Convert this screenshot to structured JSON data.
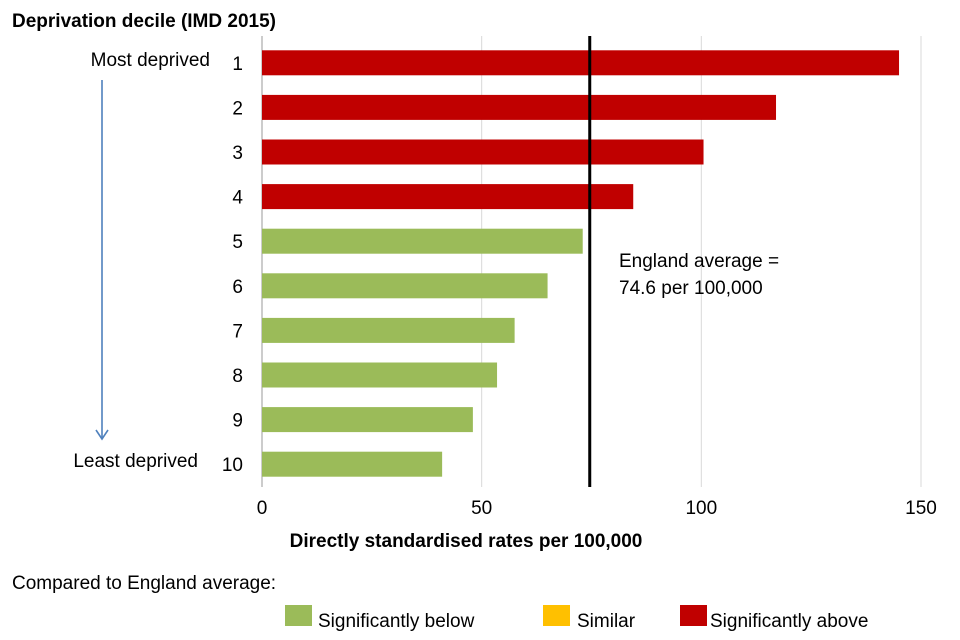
{
  "chart_data": {
    "type": "bar",
    "orientation": "horizontal",
    "title": "Deprivation decile (IMD 2015)",
    "xlabel": "Directly standardised rates per 100,000",
    "ylabel": "",
    "xlim": [
      0,
      150
    ],
    "xticks": [
      0,
      50,
      100,
      150
    ],
    "grid": true,
    "categories": [
      "1",
      "2",
      "3",
      "4",
      "5",
      "6",
      "7",
      "8",
      "9",
      "10"
    ],
    "values": [
      145,
      117,
      100.5,
      84.5,
      73,
      65,
      57.5,
      53.5,
      48,
      41
    ],
    "bar_status": [
      "above",
      "above",
      "above",
      "above",
      "below",
      "below",
      "below",
      "below",
      "below",
      "below"
    ],
    "reference_line": {
      "value": 74.6,
      "label_line1": "England average =",
      "label_line2": "74.6 per 100,000"
    },
    "most_label": "Most deprived",
    "least_label": "Least deprived",
    "legend": {
      "title": "Compared to England average:",
      "placement": "bottom",
      "items": [
        {
          "key": "below",
          "label": "Significantly below",
          "color": "#9BBB59"
        },
        {
          "key": "similar",
          "label": "Similar",
          "color": "#FFC000"
        },
        {
          "key": "above",
          "label": "Significantly above",
          "color": "#C00000"
        }
      ]
    }
  }
}
